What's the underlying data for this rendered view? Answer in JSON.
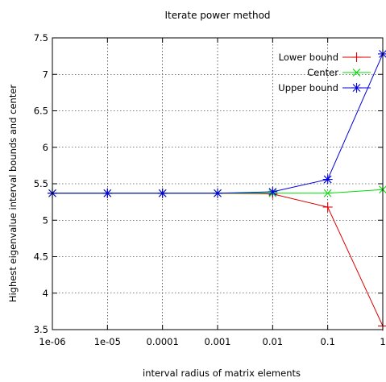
{
  "chart_data": {
    "type": "line",
    "title": "Iterate power method",
    "xlabel": "interval radius of matrix elements",
    "ylabel": "Highest eigenvalue interval bounds and center",
    "x_scale": "log",
    "x_ticks": [
      "1e-06",
      "1e-05",
      "0.0001",
      "0.001",
      "0.01",
      "0.1",
      "1"
    ],
    "x": [
      1e-06,
      1e-05,
      0.0001,
      0.001,
      0.01,
      0.1,
      1
    ],
    "xlim": [
      1e-06,
      1
    ],
    "y_ticks": [
      "3.5",
      "4",
      "4.5",
      "5",
      "5.5",
      "6",
      "6.5",
      "7",
      "7.5"
    ],
    "ylim": [
      3.5,
      7.5
    ],
    "grid": true,
    "legend_position": "top-right",
    "series": [
      {
        "name": "Lower bound",
        "color": "#dd0000",
        "marker": "plus",
        "values": [
          5.37,
          5.37,
          5.37,
          5.37,
          5.36,
          5.18,
          3.55
        ]
      },
      {
        "name": "Center",
        "color": "#00dd00",
        "marker": "cross",
        "values": [
          5.37,
          5.37,
          5.37,
          5.37,
          5.37,
          5.37,
          5.42
        ]
      },
      {
        "name": "Upper bound",
        "color": "#0000dd",
        "marker": "asterisk",
        "values": [
          5.37,
          5.37,
          5.37,
          5.37,
          5.39,
          5.56,
          7.28
        ]
      }
    ]
  }
}
